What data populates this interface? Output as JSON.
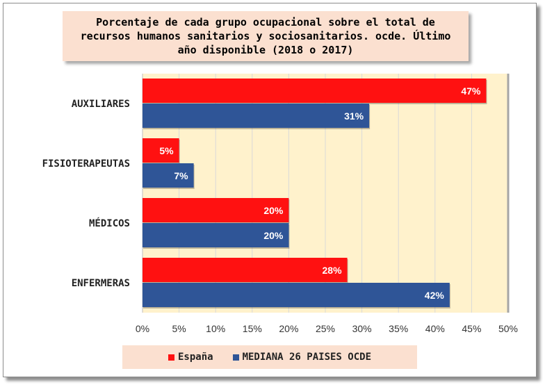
{
  "chart_data": {
    "type": "bar",
    "orientation": "horizontal",
    "title": "Porcentaje de cada grupo ocupacional sobre el total de recursos humanos sanitarios y sociosanitarios. ocde. Último año disponible (2018 o 2017)",
    "categories": [
      "AUXILIARES",
      "FISIOTERAPEUTAS",
      "MÉDICOS",
      "ENFERMERAS"
    ],
    "series": [
      {
        "name": "España",
        "values": [
          47,
          5,
          20,
          28
        ],
        "labels": [
          "47%",
          "5%",
          "20%",
          "28%"
        ],
        "color": "#ff1111"
      },
      {
        "name": "MEDIANA 26 PAISES OCDE",
        "values": [
          31,
          7,
          20,
          42
        ],
        "labels": [
          "31%",
          "7%",
          "20%",
          "42%"
        ],
        "color": "#2f5597"
      }
    ],
    "xlim": [
      0,
      50
    ],
    "x_ticks": [
      "0%",
      "5%",
      "10%",
      "15%",
      "20%",
      "25%",
      "30%",
      "35%",
      "40%",
      "45%",
      "50%"
    ],
    "grid": true,
    "legend_position": "bottom",
    "plot_background": "#fff2cc"
  }
}
